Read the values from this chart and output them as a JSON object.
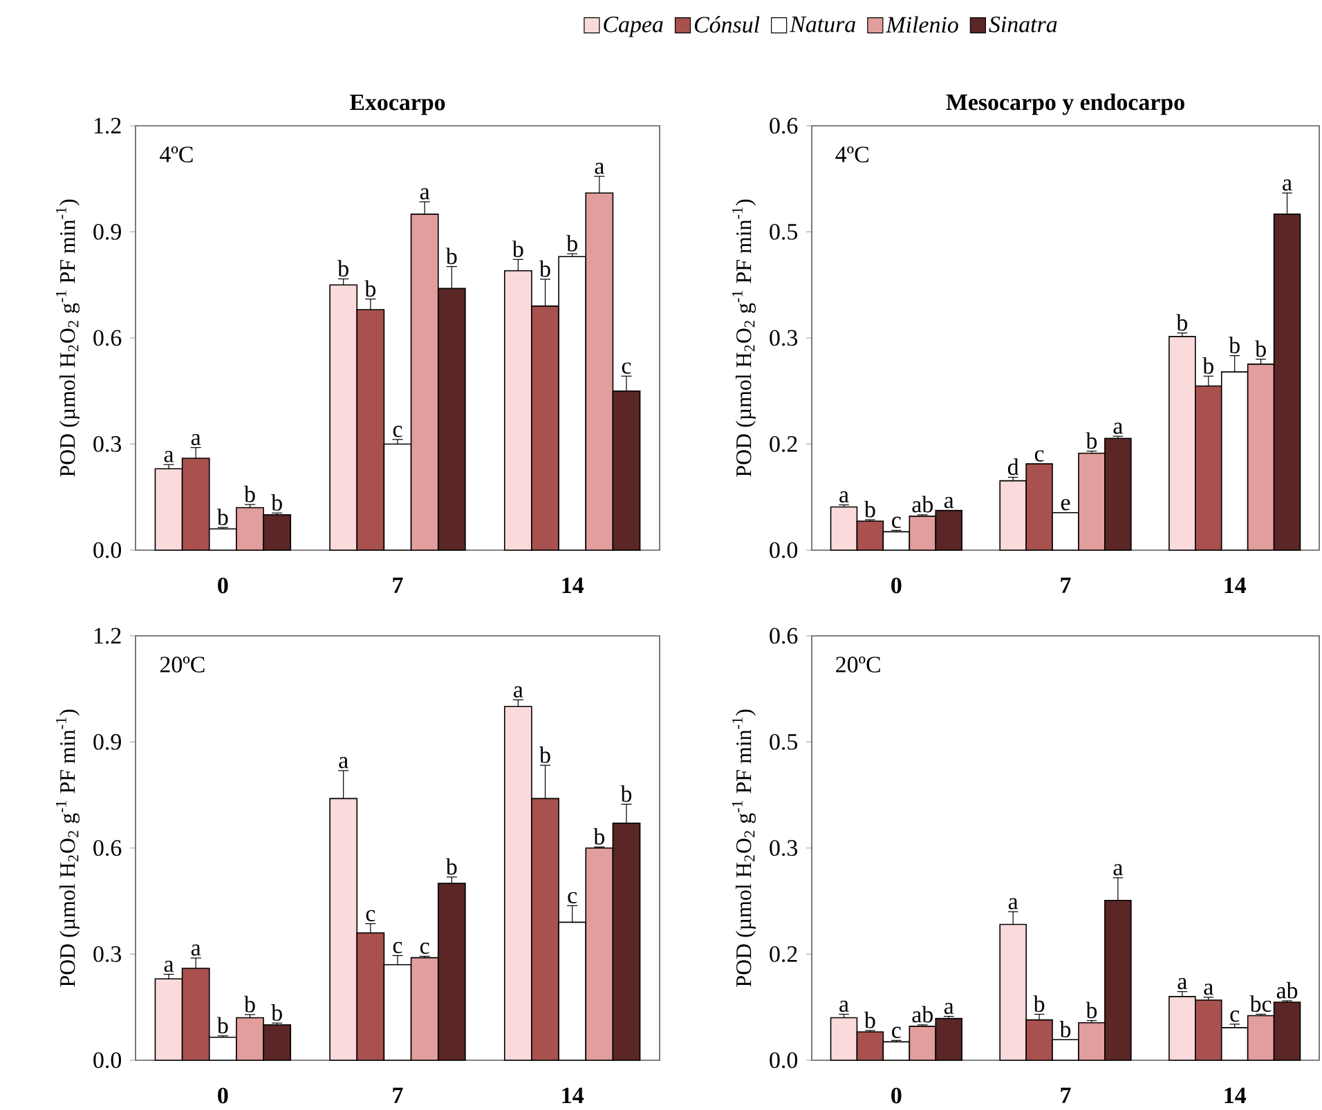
{
  "chart_data": [
    {
      "type": "bar",
      "title": "Exocarpo",
      "ylabel": "POD (µmol H$_{2}$O$_{2}$ g$^{-1}$ PF min$^{-1}$)",
      "annotations": [
        "4ºC"
      ],
      "legend": "top",
      "categories": [
        "0",
        "7",
        "14"
      ],
      "ylim": [
        0,
        1.2
      ],
      "yticks": [
        {
          "value": 0,
          "label": "0.0"
        },
        {
          "value": 0.3,
          "label": "0.3"
        },
        {
          "value": 0.6,
          "label": "0.6"
        },
        {
          "value": 0.9,
          "label": "0.9"
        },
        {
          "value": 1.2,
          "label": "1.2"
        }
      ],
      "series": [
        {
          "name": "Capea",
          "color": "#fadadb",
          "values": [
            0.23,
            0.75,
            0.79
          ],
          "errors": [
            0.012,
            0.017,
            0.032
          ],
          "value_labels": [
            "a",
            "b",
            "b"
          ]
        },
        {
          "name": "Cónsul",
          "color": "#a8514e",
          "values": [
            0.26,
            0.68,
            0.69
          ],
          "errors": [
            0.03,
            0.03,
            0.076
          ],
          "value_labels": [
            "a",
            "b",
            "b"
          ]
        },
        {
          "name": "Natura",
          "color": "#ffffff",
          "values": [
            0.06,
            0.3,
            0.83
          ],
          "errors": [
            0.004,
            0.013,
            0.008
          ],
          "value_labels": [
            "b",
            "c",
            "b"
          ]
        },
        {
          "name": "Milenio",
          "color": "#e19e9c",
          "values": [
            0.12,
            0.95,
            1.01
          ],
          "errors": [
            0.009,
            0.035,
            0.047
          ],
          "value_labels": [
            "b",
            "a",
            "a"
          ]
        },
        {
          "name": "Sinatra",
          "color": "#5a2626",
          "values": [
            0.1,
            0.74,
            0.45
          ],
          "errors": [
            0.005,
            0.062,
            0.042
          ],
          "value_labels": [
            "b",
            "b",
            "c"
          ]
        }
      ]
    },
    {
      "type": "bar",
      "title": "Mesocarpo y endocarpo",
      "ylabel": "POD (µmol H$_{2}$O$_{2}$ g$^{-1}$ PF min$^{-1}$)",
      "annotations": [
        "4ºC"
      ],
      "categories": [
        "0",
        "7",
        "14"
      ],
      "ylim": [
        0,
        0.6
      ],
      "yticks": [
        {
          "value": 0,
          "label": "0.0"
        },
        {
          "value": 0.15,
          "label": "0.2"
        },
        {
          "value": 0.3,
          "label": "0.3"
        },
        {
          "value": 0.45,
          "label": "0.5"
        },
        {
          "value": 0.6,
          "label": "0.6"
        }
      ],
      "series": [
        {
          "color": "#fadadb",
          "values": [
            0.061,
            0.098,
            0.302
          ],
          "errors": [
            0.003,
            0.005,
            0.005
          ],
          "value_labels": [
            "a",
            "d",
            "b"
          ]
        },
        {
          "color": "#a8514e",
          "values": [
            0.041,
            0.122,
            0.232
          ],
          "errors": [
            0.002,
            null,
            0.014
          ],
          "value_labels": [
            "b",
            "c",
            "b"
          ]
        },
        {
          "color": "#ffffff",
          "values": [
            0.026,
            0.053,
            0.252
          ],
          "errors": [
            0.002,
            null,
            0.023
          ],
          "value_labels": [
            "c",
            "e",
            "b"
          ]
        },
        {
          "color": "#e19e9c",
          "values": [
            0.048,
            0.137,
            0.263
          ],
          "errors": [
            0.002,
            0.003,
            0.007
          ],
          "value_labels": [
            "ab",
            "b",
            "b"
          ]
        },
        {
          "color": "#5a2626",
          "values": [
            0.056,
            0.158,
            0.475
          ],
          "errors": [
            null,
            0.003,
            0.03
          ],
          "value_labels": [
            "a",
            "a",
            "a"
          ]
        }
      ]
    },
    {
      "type": "bar",
      "ylabel": "POD (µmol H$_{2}$O$_{2}$ g$^{-1}$ PF min$^{-1}$)",
      "annotations": [
        "20ºC"
      ],
      "categories": [
        "0",
        "7",
        "14"
      ],
      "ylim": [
        0,
        1.2
      ],
      "yticks": [
        {
          "value": 0,
          "label": "0.0"
        },
        {
          "value": 0.3,
          "label": "0.3"
        },
        {
          "value": 0.6,
          "label": "0.6"
        },
        {
          "value": 0.9,
          "label": "0.9"
        },
        {
          "value": 1.2,
          "label": "1.2"
        }
      ],
      "series": [
        {
          "color": "#fadadb",
          "values": [
            0.23,
            0.74,
            1.0
          ],
          "errors": [
            0.013,
            0.079,
            0.019
          ],
          "value_labels": [
            "a",
            "a",
            "a"
          ]
        },
        {
          "color": "#a8514e",
          "values": [
            0.26,
            0.36,
            0.74
          ],
          "errors": [
            0.029,
            0.026,
            0.094
          ],
          "value_labels": [
            "a",
            "c",
            "b"
          ]
        },
        {
          "color": "#ffffff",
          "values": [
            0.065,
            0.27,
            0.39
          ],
          "errors": [
            0.004,
            0.026,
            0.047
          ],
          "value_labels": [
            "b",
            "c",
            "c"
          ]
        },
        {
          "color": "#e19e9c",
          "values": [
            0.12,
            0.29,
            0.6
          ],
          "errors": [
            0.009,
            0.004,
            0.003
          ],
          "value_labels": [
            "b",
            "c",
            "b"
          ]
        },
        {
          "color": "#5a2626",
          "values": [
            0.1,
            0.5,
            0.67
          ],
          "errors": [
            0.005,
            0.018,
            0.054
          ],
          "value_labels": [
            "b",
            "b",
            "b"
          ]
        }
      ]
    },
    {
      "type": "bar",
      "ylabel": "POD (µmol H$_{2}$O$_{2}$ g$^{-1}$ PF min$^{-1}$)",
      "annotations": [
        "20ºC"
      ],
      "categories": [
        "0",
        "7",
        "14"
      ],
      "ylim": [
        0,
        0.6
      ],
      "yticks": [
        {
          "value": 0,
          "label": "0.0"
        },
        {
          "value": 0.15,
          "label": "0.2"
        },
        {
          "value": 0.3,
          "label": "0.3"
        },
        {
          "value": 0.45,
          "label": "0.5"
        },
        {
          "value": 0.6,
          "label": "0.6"
        }
      ],
      "series": [
        {
          "color": "#fadadb",
          "values": [
            0.06,
            0.192,
            0.09
          ],
          "errors": [
            0.005,
            0.018,
            0.007
          ],
          "value_labels": [
            "a",
            "a",
            "a"
          ]
        },
        {
          "color": "#a8514e",
          "values": [
            0.04,
            0.057,
            0.085
          ],
          "errors": [
            0.002,
            0.008,
            0.004
          ],
          "value_labels": [
            "b",
            "b",
            "a"
          ]
        },
        {
          "color": "#ffffff",
          "values": [
            0.026,
            0.029,
            0.046
          ],
          "errors": [
            0.002,
            null,
            0.005
          ],
          "value_labels": [
            "c",
            "b",
            "c"
          ]
        },
        {
          "color": "#e19e9c",
          "values": [
            0.048,
            0.053,
            0.063
          ],
          "errors": [
            0.002,
            0.003,
            0.002
          ],
          "value_labels": [
            "ab",
            "b",
            "bc"
          ]
        },
        {
          "color": "#5a2626",
          "values": [
            0.059,
            0.226,
            0.082
          ],
          "errors": [
            0.003,
            0.032,
            0.002
          ],
          "value_labels": [
            "a",
            "a",
            "ab"
          ]
        }
      ]
    }
  ]
}
